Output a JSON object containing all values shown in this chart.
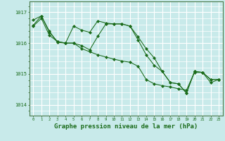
{
  "background_color": "#c8eaea",
  "plot_bg_color": "#c8eaea",
  "grid_color": "#ffffff",
  "line_color": "#1a6b1a",
  "marker_color": "#1a6b1a",
  "xlabel": "Graphe pression niveau de la mer (hPa)",
  "xlabel_fontsize": 6.5,
  "ylabel_ticks": [
    1014,
    1015,
    1016,
    1017
  ],
  "xlim": [
    -0.5,
    23.5
  ],
  "ylim": [
    1013.65,
    1017.35
  ],
  "xticks": [
    0,
    1,
    2,
    3,
    4,
    5,
    6,
    7,
    8,
    9,
    10,
    11,
    12,
    13,
    14,
    15,
    16,
    17,
    18,
    19,
    20,
    21,
    22,
    23
  ],
  "series": [
    [
      1016.55,
      1016.8,
      1016.25,
      1016.05,
      1016.0,
      1016.0,
      1015.82,
      1015.72,
      1015.62,
      1015.55,
      1015.48,
      1015.42,
      1015.38,
      1015.25,
      1014.82,
      1014.68,
      1014.62,
      1014.58,
      1014.52,
      1014.48,
      1015.05,
      1015.05,
      1014.82,
      1014.82
    ],
    [
      1016.75,
      1016.88,
      1016.35,
      1016.05,
      1016.0,
      1016.55,
      1016.42,
      1016.35,
      1016.72,
      1016.65,
      1016.62,
      1016.62,
      1016.55,
      1016.1,
      1015.62,
      1015.28,
      1015.08,
      1014.72,
      1014.68,
      1014.38,
      1015.08,
      1015.05,
      1014.72,
      1014.82
    ],
    [
      1016.58,
      1016.88,
      1016.38,
      1016.02,
      1016.0,
      1016.0,
      1015.92,
      1015.78,
      1016.22,
      1016.62,
      1016.62,
      1016.62,
      1016.55,
      1016.2,
      1015.82,
      1015.52,
      1015.08,
      1014.72,
      1014.68,
      1014.38,
      1015.08,
      1015.05,
      1014.82,
      1014.82
    ]
  ]
}
